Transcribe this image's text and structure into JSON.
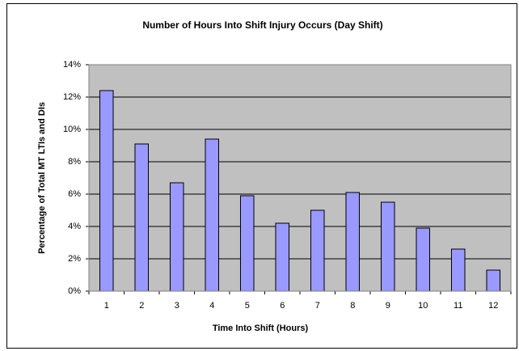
{
  "chart_data": {
    "type": "bar",
    "title": "Number of Hours Into Shift Injury Occurs (Day Shift)",
    "x_label": "Time Into Shift (Hours)",
    "y_label": "Percentage of Total MT LTIs and DIs",
    "categories": [
      "1",
      "2",
      "3",
      "4",
      "5",
      "6",
      "7",
      "8",
      "9",
      "10",
      "11",
      "12"
    ],
    "values": [
      12.4,
      9.1,
      6.7,
      9.4,
      5.9,
      4.2,
      5.0,
      6.1,
      5.5,
      3.9,
      2.6,
      1.3
    ],
    "color": "#9999ff",
    "ylim": [
      0,
      14
    ],
    "yticks": [
      {
        "value": 0,
        "label": "0%"
      },
      {
        "value": 2,
        "label": "2%"
      },
      {
        "value": 4,
        "label": "4%"
      },
      {
        "value": 6,
        "label": "6%"
      },
      {
        "value": 8,
        "label": "8%"
      },
      {
        "value": 10,
        "label": "10%"
      },
      {
        "value": 12,
        "label": "12%"
      },
      {
        "value": 14,
        "label": "14%"
      }
    ],
    "grid": true
  }
}
